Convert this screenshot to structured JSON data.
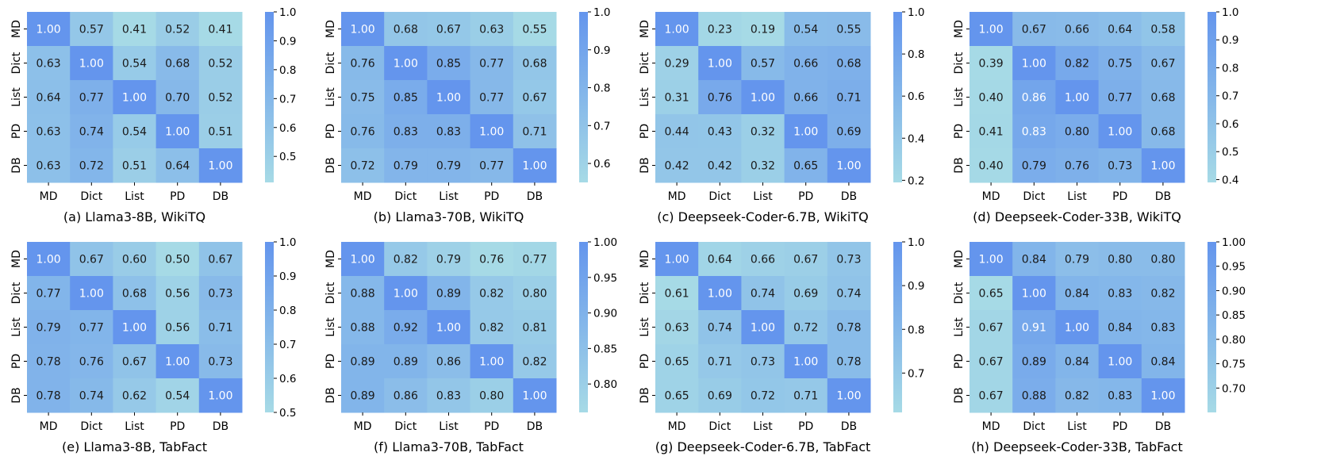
{
  "colors": {
    "low": "#a6dae6",
    "high": "#6495ed",
    "light_text": "#ffffff",
    "dark_text": "#1a1a1a"
  },
  "chart_data": [
    {
      "type": "heatmap",
      "title": "(a) Llama3-8B, WikiTQ",
      "x_labels": [
        "MD",
        "Dict",
        "List",
        "PD",
        "DB"
      ],
      "y_labels": [
        "MD",
        "Dict",
        "List",
        "PD",
        "DB"
      ],
      "values": [
        [
          1.0,
          0.57,
          0.41,
          0.52,
          0.41
        ],
        [
          0.63,
          1.0,
          0.54,
          0.68,
          0.52
        ],
        [
          0.64,
          0.77,
          1.0,
          0.7,
          0.52
        ],
        [
          0.63,
          0.74,
          0.54,
          1.0,
          0.51
        ],
        [
          0.63,
          0.72,
          0.51,
          0.64,
          1.0
        ]
      ],
      "colorbar": {
        "range": [
          0.41,
          1.0
        ],
        "ticks": [
          "0.5",
          "0.6",
          "0.7",
          "0.8",
          "0.9",
          "1.0"
        ]
      }
    },
    {
      "type": "heatmap",
      "title": "(b) Llama3-70B, WikiTQ",
      "x_labels": [
        "MD",
        "Dict",
        "List",
        "PD",
        "DB"
      ],
      "y_labels": [
        "MD",
        "Dict",
        "List",
        "PD",
        "DB"
      ],
      "values": [
        [
          1.0,
          0.68,
          0.67,
          0.63,
          0.55
        ],
        [
          0.76,
          1.0,
          0.85,
          0.77,
          0.68
        ],
        [
          0.75,
          0.85,
          1.0,
          0.77,
          0.67
        ],
        [
          0.76,
          0.83,
          0.83,
          1.0,
          0.71
        ],
        [
          0.72,
          0.79,
          0.79,
          0.77,
          1.0
        ]
      ],
      "colorbar": {
        "range": [
          0.55,
          1.0
        ],
        "ticks": [
          "0.6",
          "0.7",
          "0.8",
          "0.9",
          "1.0"
        ]
      }
    },
    {
      "type": "heatmap",
      "title": "(c) Deepseek-Coder-6.7B, WikiTQ",
      "x_labels": [
        "MD",
        "Dict",
        "List",
        "PD",
        "DB"
      ],
      "y_labels": [
        "MD",
        "Dict",
        "List",
        "PD",
        "DB"
      ],
      "values": [
        [
          1.0,
          0.23,
          0.19,
          0.54,
          0.55
        ],
        [
          0.29,
          1.0,
          0.57,
          0.66,
          0.68
        ],
        [
          0.31,
          0.76,
          1.0,
          0.66,
          0.71
        ],
        [
          0.44,
          0.43,
          0.32,
          1.0,
          0.69
        ],
        [
          0.42,
          0.42,
          0.32,
          0.65,
          1.0
        ]
      ],
      "colorbar": {
        "range": [
          0.19,
          1.0
        ],
        "ticks": [
          "0.2",
          "0.4",
          "0.6",
          "0.8",
          "1.0"
        ]
      }
    },
    {
      "type": "heatmap",
      "title": "(d) Deepseek-Coder-33B, WikiTQ",
      "x_labels": [
        "MD",
        "Dict",
        "List",
        "PD",
        "DB"
      ],
      "y_labels": [
        "MD",
        "Dict",
        "List",
        "PD",
        "DB"
      ],
      "values": [
        [
          1.0,
          0.67,
          0.66,
          0.64,
          0.58
        ],
        [
          0.39,
          1.0,
          0.82,
          0.75,
          0.67
        ],
        [
          0.4,
          0.86,
          1.0,
          0.77,
          0.68
        ],
        [
          0.41,
          0.83,
          0.8,
          1.0,
          0.68
        ],
        [
          0.4,
          0.79,
          0.76,
          0.73,
          1.0
        ]
      ],
      "colorbar": {
        "range": [
          0.39,
          1.0
        ],
        "ticks": [
          "0.4",
          "0.5",
          "0.6",
          "0.7",
          "0.8",
          "0.9",
          "1.0"
        ]
      }
    },
    {
      "type": "heatmap",
      "title": "(e) Llama3-8B, TabFact",
      "x_labels": [
        "MD",
        "Dict",
        "List",
        "PD",
        "DB"
      ],
      "y_labels": [
        "MD",
        "Dict",
        "List",
        "PD",
        "DB"
      ],
      "values": [
        [
          1.0,
          0.67,
          0.6,
          0.5,
          0.67
        ],
        [
          0.77,
          1.0,
          0.68,
          0.56,
          0.73
        ],
        [
          0.79,
          0.77,
          1.0,
          0.56,
          0.71
        ],
        [
          0.78,
          0.76,
          0.67,
          1.0,
          0.73
        ],
        [
          0.78,
          0.74,
          0.62,
          0.54,
          1.0
        ]
      ],
      "colorbar": {
        "range": [
          0.5,
          1.0
        ],
        "ticks": [
          "0.5",
          "0.6",
          "0.7",
          "0.8",
          "0.9",
          "1.0"
        ]
      }
    },
    {
      "type": "heatmap",
      "title": "(f) Llama3-70B, TabFact",
      "x_labels": [
        "MD",
        "Dict",
        "List",
        "PD",
        "DB"
      ],
      "y_labels": [
        "MD",
        "Dict",
        "List",
        "PD",
        "DB"
      ],
      "values": [
        [
          1.0,
          0.82,
          0.79,
          0.76,
          0.77
        ],
        [
          0.88,
          1.0,
          0.89,
          0.82,
          0.8
        ],
        [
          0.88,
          0.92,
          1.0,
          0.82,
          0.81
        ],
        [
          0.89,
          0.89,
          0.86,
          1.0,
          0.82
        ],
        [
          0.89,
          0.86,
          0.83,
          0.8,
          1.0
        ]
      ],
      "colorbar": {
        "range": [
          0.76,
          1.0
        ],
        "ticks": [
          "0.80",
          "0.85",
          "0.90",
          "0.95",
          "1.00"
        ]
      }
    },
    {
      "type": "heatmap",
      "title": "(g) Deepseek-Coder-6.7B, TabFact",
      "x_labels": [
        "MD",
        "Dict",
        "List",
        "PD",
        "DB"
      ],
      "y_labels": [
        "MD",
        "Dict",
        "List",
        "PD",
        "DB"
      ],
      "values": [
        [
          1.0,
          0.64,
          0.66,
          0.67,
          0.73
        ],
        [
          0.61,
          1.0,
          0.74,
          0.69,
          0.74
        ],
        [
          0.63,
          0.74,
          1.0,
          0.72,
          0.78
        ],
        [
          0.65,
          0.71,
          0.73,
          1.0,
          0.78
        ],
        [
          0.65,
          0.69,
          0.72,
          0.71,
          1.0
        ]
      ],
      "colorbar": {
        "range": [
          0.61,
          1.0
        ],
        "ticks": [
          "0.7",
          "0.8",
          "0.9",
          "1.0"
        ]
      }
    },
    {
      "type": "heatmap",
      "title": "(h) Deepseek-Coder-33B, TabFact",
      "x_labels": [
        "MD",
        "Dict",
        "List",
        "PD",
        "DB"
      ],
      "y_labels": [
        "MD",
        "Dict",
        "List",
        "PD",
        "DB"
      ],
      "values": [
        [
          1.0,
          0.84,
          0.79,
          0.8,
          0.8
        ],
        [
          0.65,
          1.0,
          0.84,
          0.83,
          0.82
        ],
        [
          0.67,
          0.91,
          1.0,
          0.84,
          0.83
        ],
        [
          0.67,
          0.89,
          0.84,
          1.0,
          0.84
        ],
        [
          0.67,
          0.88,
          0.82,
          0.83,
          1.0
        ]
      ],
      "colorbar": {
        "range": [
          0.65,
          1.0
        ],
        "ticks": [
          "0.70",
          "0.75",
          "0.80",
          "0.85",
          "0.90",
          "0.95",
          "1.00"
        ]
      }
    }
  ]
}
